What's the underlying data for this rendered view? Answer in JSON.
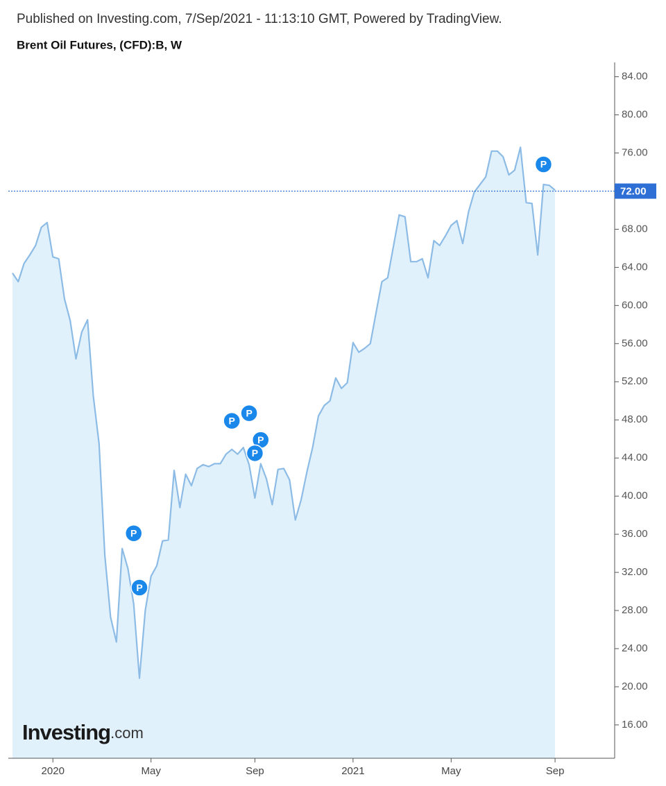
{
  "chart_data": {
    "type": "area",
    "subtitle": "Published on Investing.com, 7/Sep/2021 - 11:13:10 GMT, Powered by TradingView.",
    "title": "Brent Oil Futures, (CFD):B, W",
    "watermark": {
      "brand": "Investing",
      "suffix": ".com"
    },
    "color": "#8cbbe6",
    "fill": "#e1f1fb",
    "categories": [
      null,
      null,
      null,
      null,
      null,
      null,
      null,
      "2020",
      null,
      null,
      null,
      null,
      null,
      null,
      null,
      null,
      null,
      null,
      null,
      null,
      null,
      null,
      null,
      null,
      "May",
      null,
      null,
      null,
      null,
      null,
      null,
      null,
      null,
      null,
      null,
      null,
      null,
      null,
      null,
      null,
      null,
      null,
      "Sep",
      null,
      null,
      null,
      null,
      null,
      null,
      null,
      null,
      null,
      null,
      null,
      null,
      null,
      null,
      null,
      null,
      "2021",
      null,
      null,
      null,
      null,
      null,
      null,
      null,
      null,
      null,
      null,
      null,
      null,
      null,
      null,
      null,
      null,
      "May",
      null,
      null,
      null,
      null,
      null,
      null,
      null,
      null,
      null,
      null,
      null,
      null,
      null,
      null,
      null,
      null,
      null,
      "Sep"
    ],
    "values": [
      63.4,
      62.5,
      64.4,
      65.3,
      66.3,
      68.2,
      68.7,
      65.1,
      64.9,
      60.7,
      58.4,
      54.4,
      57.2,
      58.5,
      50.5,
      45.5,
      33.8,
      27.3,
      24.7,
      34.5,
      32.4,
      28.7,
      20.9,
      28.0,
      31.6,
      32.7,
      35.3,
      35.4,
      42.7,
      38.8,
      42.3,
      41.1,
      42.9,
      43.3,
      43.1,
      43.4,
      43.4,
      44.4,
      44.9,
      44.4,
      45.1,
      43.3,
      39.8,
      43.4,
      41.8,
      39.1,
      42.8,
      42.9,
      41.7,
      37.5,
      39.6,
      42.5,
      45.1,
      48.4,
      49.5,
      50.0,
      52.4,
      51.3,
      51.9,
      56.1,
      55.1,
      55.5,
      56.0,
      59.3,
      62.5,
      62.9,
      66.2,
      69.5,
      69.3,
      64.6,
      64.6,
      64.9,
      62.9,
      66.8,
      66.3,
      67.3,
      68.4,
      68.9,
      66.5,
      69.8,
      71.9,
      72.7,
      73.5,
      76.2,
      76.2,
      75.6,
      73.7,
      74.2,
      76.6,
      70.8,
      70.7,
      65.3,
      72.7,
      72.6,
      72.1
    ],
    "ylim": [
      12.5,
      85.5
    ],
    "yticks": [
      {
        "value": 84,
        "label": "84.00"
      },
      {
        "value": 80,
        "label": "80.00"
      },
      {
        "value": 76,
        "label": "76.00"
      },
      {
        "value": 68,
        "label": "68.00"
      },
      {
        "value": 64,
        "label": "64.00"
      },
      {
        "value": 60,
        "label": "60.00"
      },
      {
        "value": 56,
        "label": "56.00"
      },
      {
        "value": 52,
        "label": "52.00"
      },
      {
        "value": 48,
        "label": "48.00"
      },
      {
        "value": 44,
        "label": "44.00"
      },
      {
        "value": 40,
        "label": "40.00"
      },
      {
        "value": 36,
        "label": "36.00"
      },
      {
        "value": 32,
        "label": "32.00"
      },
      {
        "value": 28,
        "label": "28.00"
      },
      {
        "value": 24,
        "label": "24.00"
      },
      {
        "value": 20,
        "label": "20.00"
      },
      {
        "value": 16,
        "label": "16.00"
      }
    ],
    "last_price": {
      "value": 72,
      "label": "72.00",
      "color": "#2e6fd6"
    },
    "events": [
      {
        "x": 21,
        "value": 36.1,
        "label": "P"
      },
      {
        "x": 22,
        "value": 30.4,
        "label": "P"
      },
      {
        "x": 38,
        "value": 47.9,
        "label": "P"
      },
      {
        "x": 41,
        "value": 48.7,
        "label": "P"
      },
      {
        "x": 43,
        "value": 45.9,
        "label": "P"
      },
      {
        "x": 42,
        "value": 44.5,
        "label": "P"
      },
      {
        "x": 92,
        "value": 74.8,
        "label": "P"
      }
    ],
    "event_color": "#1a87ea"
  }
}
